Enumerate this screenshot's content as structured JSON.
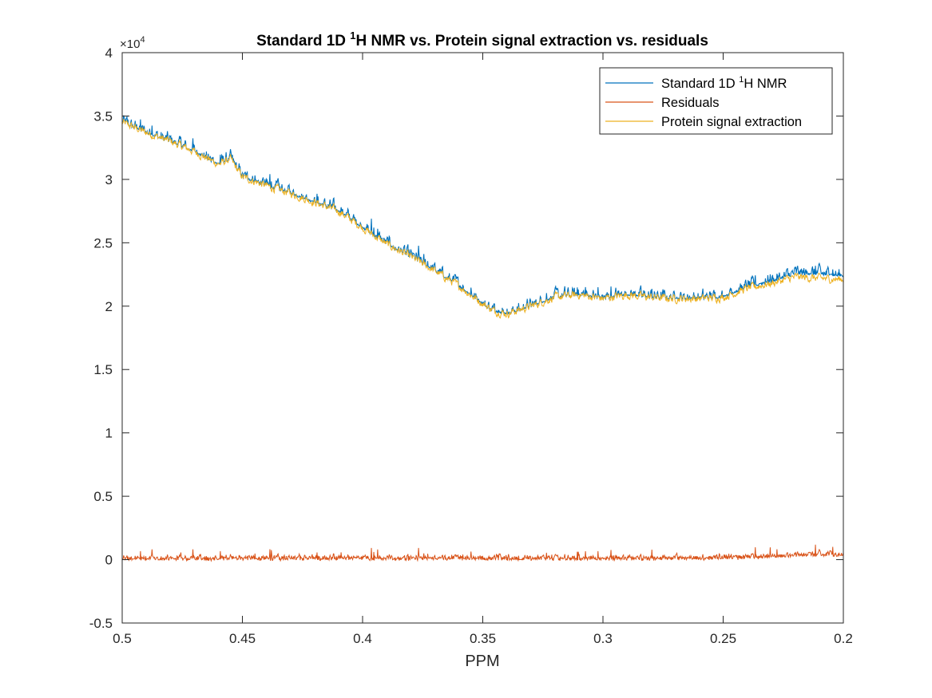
{
  "chart_data": {
    "type": "line",
    "title": {
      "pre": "Standard 1D ",
      "sup": "1",
      "post": "H NMR vs. Protein signal extraction vs. residuals"
    },
    "xlabel": "PPM",
    "ylabel": "",
    "x_reversed": true,
    "xlim": [
      0.2,
      0.5
    ],
    "ylim": [
      -5000,
      40000
    ],
    "y_multiplier_label": {
      "base": "×10",
      "exp": "4"
    },
    "x_ticks": [
      0.5,
      0.45,
      0.4,
      0.35,
      0.3,
      0.25,
      0.2
    ],
    "x_tick_labels": [
      "0.5",
      "0.45",
      "0.4",
      "0.35",
      "0.3",
      "0.25",
      "0.2"
    ],
    "y_ticks": [
      -5000,
      0,
      5000,
      10000,
      15000,
      20000,
      25000,
      30000,
      35000,
      40000
    ],
    "y_tick_labels": [
      "-0.5",
      "0",
      "0.5",
      "1",
      "1.5",
      "2",
      "2.5",
      "3",
      "3.5",
      "4"
    ],
    "grid": false,
    "legend_position": "top-right",
    "series": [
      {
        "name": {
          "pre": "Standard 1D ",
          "sup": "1",
          "post": "H NMR"
        },
        "color": "#0072BD",
        "x": [
          0.5,
          0.49,
          0.48,
          0.47,
          0.46,
          0.455,
          0.45,
          0.44,
          0.43,
          0.42,
          0.41,
          0.4,
          0.39,
          0.38,
          0.37,
          0.36,
          0.35,
          0.345,
          0.34,
          0.33,
          0.32,
          0.31,
          0.3,
          0.29,
          0.28,
          0.27,
          0.26,
          0.25,
          0.24,
          0.23,
          0.22,
          0.21,
          0.2
        ],
        "y": [
          34800,
          34000,
          33300,
          32500,
          31500,
          32200,
          30500,
          29800,
          29200,
          28500,
          27800,
          26500,
          25200,
          24200,
          23000,
          21800,
          20400,
          19800,
          19600,
          20300,
          21000,
          21200,
          20900,
          21300,
          21000,
          20900,
          20900,
          21000,
          21800,
          22500,
          23200,
          23300,
          23000
        ]
      },
      {
        "name": {
          "pre": "Residuals",
          "sup": "",
          "post": ""
        },
        "color": "#D95319",
        "x": [
          0.5,
          0.45,
          0.4,
          0.35,
          0.3,
          0.25,
          0.22,
          0.21,
          0.2
        ],
        "y": [
          300,
          300,
          300,
          300,
          300,
          350,
          800,
          1000,
          900
        ]
      },
      {
        "name": {
          "pre": "Protein signal extraction",
          "sup": "",
          "post": ""
        },
        "color": "#EDB120",
        "x": [
          0.5,
          0.49,
          0.48,
          0.47,
          0.46,
          0.455,
          0.45,
          0.44,
          0.43,
          0.42,
          0.41,
          0.4,
          0.39,
          0.38,
          0.37,
          0.36,
          0.35,
          0.345,
          0.34,
          0.33,
          0.32,
          0.31,
          0.3,
          0.29,
          0.28,
          0.27,
          0.26,
          0.25,
          0.24,
          0.23,
          0.22,
          0.21,
          0.2
        ],
        "y": [
          34500,
          33700,
          33000,
          32200,
          31200,
          31600,
          30200,
          29500,
          28900,
          28200,
          27500,
          26200,
          24900,
          23900,
          22800,
          21600,
          20200,
          19600,
          19400,
          20000,
          20700,
          20900,
          20600,
          20900,
          20700,
          20600,
          20600,
          20700,
          21400,
          21800,
          22300,
          22200,
          22100
        ]
      }
    ]
  }
}
